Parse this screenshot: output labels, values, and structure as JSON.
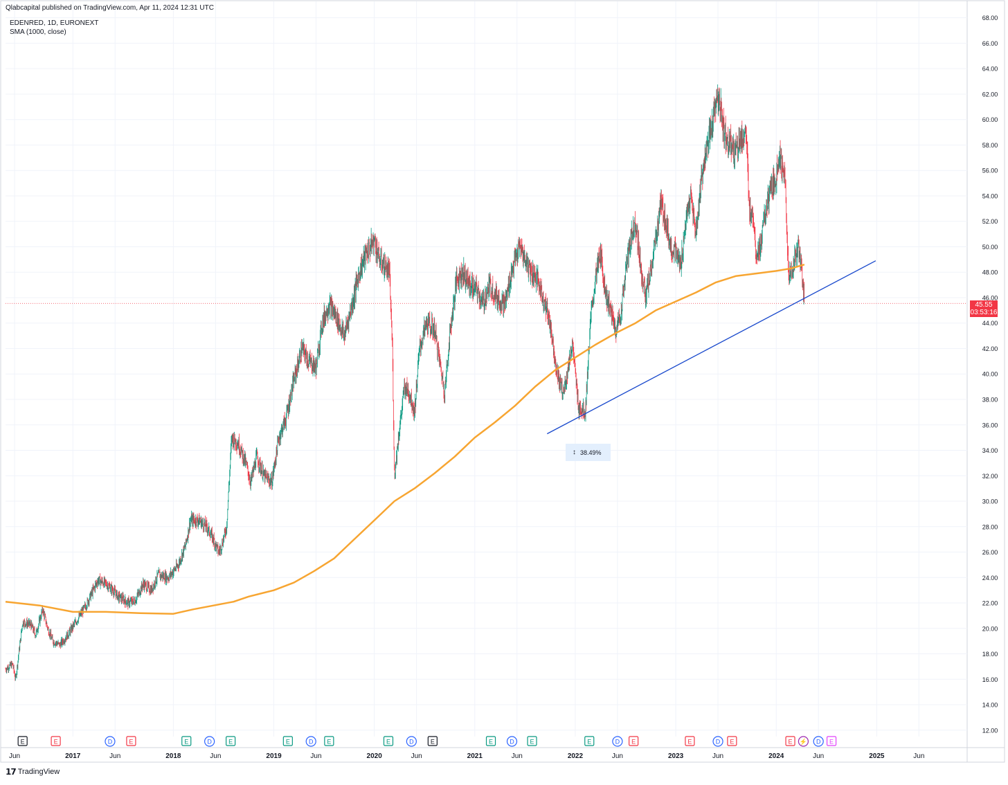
{
  "header": {
    "published": "Qlabcapital published on TradingView.com, Apr 11, 2024 12:31 UTC"
  },
  "legend": {
    "symbol": "EDENRED, 1D, EURONEXT",
    "indicator": "SMA (1000, close)"
  },
  "price_tag": {
    "price": "45.55",
    "countdown": "03:53:16"
  },
  "measure": {
    "label": "38.49%"
  },
  "footer": {
    "brand": "TradingView"
  },
  "colors": {
    "up": "#089981",
    "down": "#f23645",
    "sma": "#f7a531",
    "trendline": "#1848cc",
    "measure_bg": "#e3effd"
  },
  "events": [
    {
      "label": "E",
      "kind": "earnings-neutral",
      "date": 2016.5
    },
    {
      "label": "E",
      "kind": "earnings-miss",
      "date": 2016.83
    },
    {
      "label": "D",
      "kind": "dividend",
      "date": 2017.37
    },
    {
      "label": "E",
      "kind": "earnings-miss",
      "date": 2017.58
    },
    {
      "label": "E",
      "kind": "earnings-beat",
      "date": 2018.13
    },
    {
      "label": "D",
      "kind": "dividend",
      "date": 2018.36
    },
    {
      "label": "E",
      "kind": "earnings-beat",
      "date": 2018.57
    },
    {
      "label": "E",
      "kind": "earnings-beat",
      "date": 2019.14
    },
    {
      "label": "D",
      "kind": "dividend",
      "date": 2019.37
    },
    {
      "label": "E",
      "kind": "earnings-beat",
      "date": 2019.55
    },
    {
      "label": "E",
      "kind": "earnings-beat",
      "date": 2020.14
    },
    {
      "label": "D",
      "kind": "dividend",
      "date": 2020.37
    },
    {
      "label": "E",
      "kind": "earnings-neutral",
      "date": 2020.58
    },
    {
      "label": "E",
      "kind": "earnings-beat",
      "date": 2021.16
    },
    {
      "label": "D",
      "kind": "dividend",
      "date": 2021.37
    },
    {
      "label": "E",
      "kind": "earnings-beat",
      "date": 2021.57
    },
    {
      "label": "E",
      "kind": "earnings-beat",
      "date": 2022.14
    },
    {
      "label": "D",
      "kind": "dividend",
      "date": 2022.42
    },
    {
      "label": "E",
      "kind": "earnings-miss",
      "date": 2022.58
    },
    {
      "label": "E",
      "kind": "earnings-miss",
      "date": 2023.14
    },
    {
      "label": "D",
      "kind": "dividend",
      "date": 2023.42
    },
    {
      "label": "E",
      "kind": "earnings-miss",
      "date": 2023.56
    },
    {
      "label": "E",
      "kind": "earnings-miss",
      "date": 2024.14
    },
    {
      "label": "⚡",
      "kind": "split",
      "date": 2024.27
    },
    {
      "label": "D",
      "kind": "dividend",
      "date": 2024.42
    },
    {
      "label": "E",
      "kind": "earnings-upcoming",
      "date": 2024.55
    }
  ],
  "chart_data": {
    "type": "candlestick",
    "symbol": "EDENRED",
    "interval": "1D",
    "exchange": "EURONEXT",
    "ylim": [
      11.5,
      68.2
    ],
    "xlim": [
      2016.33,
      2025.9
    ],
    "y_ticks": [
      "12.00",
      "14.00",
      "16.00",
      "18.00",
      "20.00",
      "22.00",
      "24.00",
      "26.00",
      "28.00",
      "30.00",
      "32.00",
      "34.00",
      "36.00",
      "38.00",
      "40.00",
      "42.00",
      "44.00",
      "46.00",
      "48.00",
      "50.00",
      "52.00",
      "54.00",
      "56.00",
      "58.00",
      "60.00",
      "62.00",
      "64.00",
      "66.00",
      "68.00"
    ],
    "y_tick_values": [
      12,
      14,
      16,
      18,
      20,
      22,
      24,
      26,
      28,
      30,
      32,
      34,
      36,
      38,
      40,
      42,
      44,
      46,
      48,
      50,
      52,
      54,
      56,
      58,
      60,
      62,
      64,
      66,
      68
    ],
    "x_ticks": [
      {
        "label": "Jun",
        "t": 2016.42
      },
      {
        "label": "2017",
        "t": 2017.0
      },
      {
        "label": "Jun",
        "t": 2017.42
      },
      {
        "label": "2018",
        "t": 2018.0
      },
      {
        "label": "Jun",
        "t": 2018.42
      },
      {
        "label": "2019",
        "t": 2019.0
      },
      {
        "label": "Jun",
        "t": 2019.42
      },
      {
        "label": "2020",
        "t": 2020.0
      },
      {
        "label": "Jun",
        "t": 2020.42
      },
      {
        "label": "2021",
        "t": 2021.0
      },
      {
        "label": "Jun",
        "t": 2021.42
      },
      {
        "label": "2022",
        "t": 2022.0
      },
      {
        "label": "Jun",
        "t": 2022.42
      },
      {
        "label": "2023",
        "t": 2023.0
      },
      {
        "label": "Jun",
        "t": 2023.42
      },
      {
        "label": "2024",
        "t": 2024.0
      },
      {
        "label": "Jun",
        "t": 2024.42
      },
      {
        "label": "2025",
        "t": 2025.0
      },
      {
        "label": "Jun",
        "t": 2025.42
      }
    ],
    "price_path": [
      [
        2016.33,
        16.8
      ],
      [
        2016.4,
        17.2
      ],
      [
        2016.43,
        16.0
      ],
      [
        2016.5,
        20.5
      ],
      [
        2016.58,
        20.3
      ],
      [
        2016.63,
        19.5
      ],
      [
        2016.7,
        21.5
      ],
      [
        2016.75,
        20.0
      ],
      [
        2016.8,
        19.0
      ],
      [
        2016.87,
        18.7
      ],
      [
        2016.95,
        19.5
      ],
      [
        2017.03,
        20.5
      ],
      [
        2017.13,
        21.8
      ],
      [
        2017.25,
        23.8
      ],
      [
        2017.33,
        23.5
      ],
      [
        2017.4,
        23.0
      ],
      [
        2017.45,
        22.5
      ],
      [
        2017.5,
        22.3
      ],
      [
        2017.55,
        22.0
      ],
      [
        2017.62,
        22.2
      ],
      [
        2017.7,
        23.5
      ],
      [
        2017.78,
        23.0
      ],
      [
        2017.85,
        24.2
      ],
      [
        2017.95,
        24.0
      ],
      [
        2018.05,
        25.0
      ],
      [
        2018.12,
        26.5
      ],
      [
        2018.17,
        28.5
      ],
      [
        2018.25,
        28.5
      ],
      [
        2018.33,
        28.0
      ],
      [
        2018.4,
        27.0
      ],
      [
        2018.45,
        26.0
      ],
      [
        2018.48,
        26.5
      ],
      [
        2018.53,
        28.0
      ],
      [
        2018.58,
        35.0
      ],
      [
        2018.65,
        34.5
      ],
      [
        2018.72,
        33.0
      ],
      [
        2018.77,
        31.5
      ],
      [
        2018.83,
        33.5
      ],
      [
        2018.9,
        32.0
      ],
      [
        2018.98,
        31.5
      ],
      [
        2019.05,
        35.0
      ],
      [
        2019.12,
        36.5
      ],
      [
        2019.2,
        39.5
      ],
      [
        2019.28,
        42.0
      ],
      [
        2019.35,
        41.0
      ],
      [
        2019.42,
        40.5
      ],
      [
        2019.48,
        44.0
      ],
      [
        2019.55,
        45.5
      ],
      [
        2019.62,
        44.5
      ],
      [
        2019.7,
        43.0
      ],
      [
        2019.78,
        45.5
      ],
      [
        2019.85,
        48.0
      ],
      [
        2019.92,
        49.5
      ],
      [
        2020.0,
        50.5
      ],
      [
        2020.05,
        49.0
      ],
      [
        2020.15,
        48.0
      ],
      [
        2020.18,
        42.0
      ],
      [
        2020.2,
        32.0
      ],
      [
        2020.24,
        35.0
      ],
      [
        2020.3,
        39.0
      ],
      [
        2020.35,
        38.5
      ],
      [
        2020.4,
        37.0
      ],
      [
        2020.45,
        42.0
      ],
      [
        2020.52,
        44.0
      ],
      [
        2020.6,
        43.5
      ],
      [
        2020.65,
        41.0
      ],
      [
        2020.7,
        38.5
      ],
      [
        2020.75,
        43.0
      ],
      [
        2020.82,
        47.5
      ],
      [
        2020.88,
        48.0
      ],
      [
        2020.95,
        47.0
      ],
      [
        2021.03,
        46.5
      ],
      [
        2021.08,
        45.5
      ],
      [
        2021.15,
        47.0
      ],
      [
        2021.22,
        46.0
      ],
      [
        2021.3,
        45.5
      ],
      [
        2021.38,
        48.5
      ],
      [
        2021.45,
        50.0
      ],
      [
        2021.5,
        49.0
      ],
      [
        2021.57,
        48.0
      ],
      [
        2021.62,
        47.5
      ],
      [
        2021.68,
        46.0
      ],
      [
        2021.75,
        44.0
      ],
      [
        2021.82,
        40.0
      ],
      [
        2021.88,
        38.5
      ],
      [
        2021.93,
        40.5
      ],
      [
        2021.97,
        42.5
      ],
      [
        2022.03,
        37.5
      ],
      [
        2022.1,
        37.0
      ],
      [
        2022.15,
        44.0
      ],
      [
        2022.2,
        47.5
      ],
      [
        2022.25,
        49.5
      ],
      [
        2022.3,
        46.5
      ],
      [
        2022.35,
        45.0
      ],
      [
        2022.4,
        43.5
      ],
      [
        2022.45,
        44.5
      ],
      [
        2022.5,
        48.0
      ],
      [
        2022.55,
        50.5
      ],
      [
        2022.6,
        52.0
      ],
      [
        2022.65,
        48.5
      ],
      [
        2022.7,
        46.0
      ],
      [
        2022.75,
        48.0
      ],
      [
        2022.8,
        50.5
      ],
      [
        2022.85,
        53.5
      ],
      [
        2022.9,
        52.0
      ],
      [
        2022.95,
        50.0
      ],
      [
        2023.0,
        49.5
      ],
      [
        2023.05,
        48.5
      ],
      [
        2023.1,
        52.0
      ],
      [
        2023.15,
        54.0
      ],
      [
        2023.2,
        51.0
      ],
      [
        2023.25,
        55.0
      ],
      [
        2023.3,
        57.5
      ],
      [
        2023.35,
        59.0
      ],
      [
        2023.4,
        61.5
      ],
      [
        2023.45,
        61.0
      ],
      [
        2023.48,
        59.0
      ],
      [
        2023.52,
        58.5
      ],
      [
        2023.58,
        57.5
      ],
      [
        2023.65,
        58.5
      ],
      [
        2023.7,
        59.0
      ],
      [
        2023.73,
        53.0
      ],
      [
        2023.77,
        52.5
      ],
      [
        2023.8,
        49.5
      ],
      [
        2023.84,
        50.0
      ],
      [
        2023.9,
        53.0
      ],
      [
        2023.95,
        54.5
      ],
      [
        2024.0,
        55.5
      ],
      [
        2024.03,
        57.5
      ],
      [
        2024.06,
        56.0
      ],
      [
        2024.09,
        55.0
      ],
      [
        2024.11,
        50.0
      ],
      [
        2024.13,
        47.5
      ],
      [
        2024.15,
        48.0
      ],
      [
        2024.18,
        49.0
      ],
      [
        2024.22,
        50.0
      ],
      [
        2024.25,
        48.5
      ],
      [
        2024.28,
        45.55
      ]
    ],
    "sma_1000": [
      [
        2016.33,
        22.1
      ],
      [
        2016.67,
        21.8
      ],
      [
        2017.0,
        21.3
      ],
      [
        2017.33,
        21.3
      ],
      [
        2017.67,
        21.2
      ],
      [
        2018.0,
        21.15
      ],
      [
        2018.2,
        21.5
      ],
      [
        2018.4,
        21.8
      ],
      [
        2018.6,
        22.1
      ],
      [
        2018.75,
        22.5
      ],
      [
        2019.0,
        23.0
      ],
      [
        2019.2,
        23.6
      ],
      [
        2019.4,
        24.5
      ],
      [
        2019.6,
        25.5
      ],
      [
        2019.8,
        27.0
      ],
      [
        2020.0,
        28.5
      ],
      [
        2020.2,
        30.0
      ],
      [
        2020.4,
        31.0
      ],
      [
        2020.6,
        32.2
      ],
      [
        2020.8,
        33.5
      ],
      [
        2021.0,
        35.0
      ],
      [
        2021.2,
        36.2
      ],
      [
        2021.4,
        37.5
      ],
      [
        2021.6,
        39.0
      ],
      [
        2021.8,
        40.3
      ],
      [
        2022.0,
        41.3
      ],
      [
        2022.2,
        42.3
      ],
      [
        2022.4,
        43.2
      ],
      [
        2022.6,
        44.0
      ],
      [
        2022.8,
        45.0
      ],
      [
        2023.0,
        45.7
      ],
      [
        2023.2,
        46.4
      ],
      [
        2023.4,
        47.2
      ],
      [
        2023.6,
        47.7
      ],
      [
        2023.8,
        47.9
      ],
      [
        2024.0,
        48.1
      ],
      [
        2024.15,
        48.3
      ],
      [
        2024.28,
        48.6
      ]
    ],
    "trendline": {
      "points": [
        [
          2021.72,
          35.3
        ],
        [
          2024.99,
          48.9
        ]
      ]
    },
    "measurement": {
      "label": "38.49%"
    },
    "last_price": 45.55,
    "legend_placement": "top-left",
    "grid": true
  }
}
